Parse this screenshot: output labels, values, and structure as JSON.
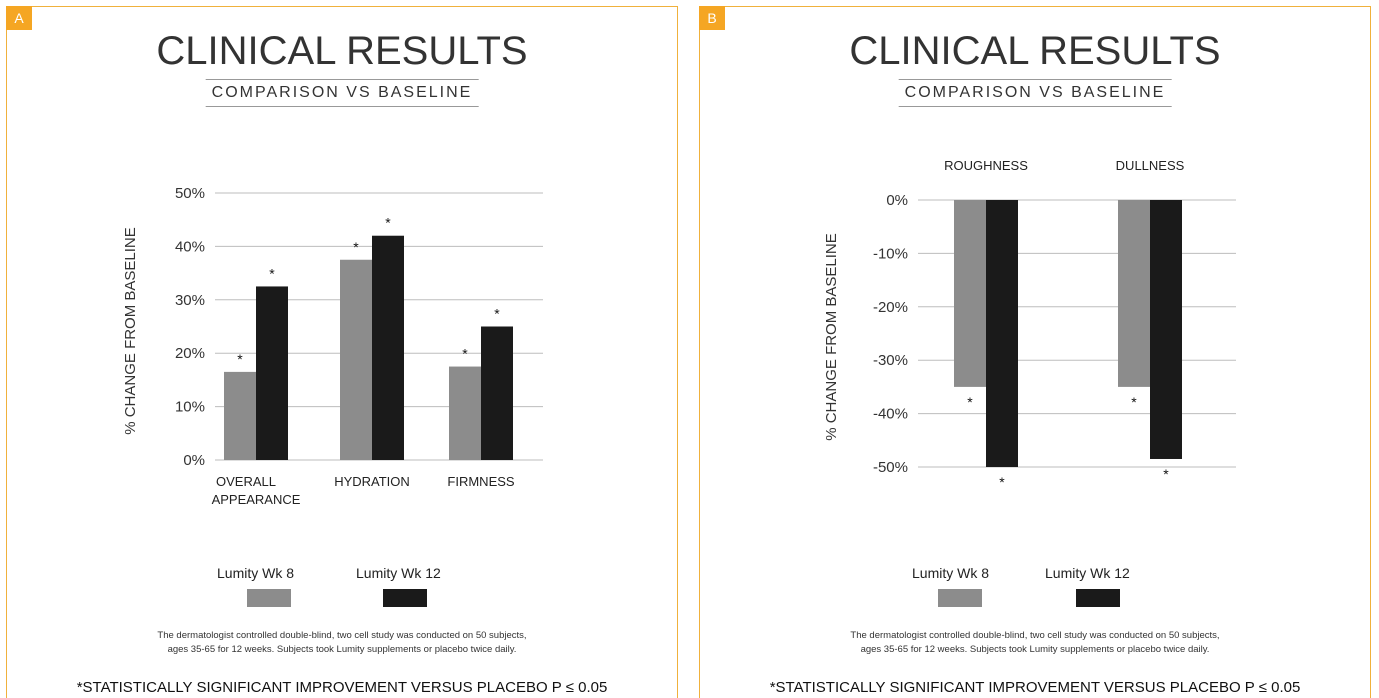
{
  "panels": [
    {
      "tag": "A",
      "title": "CLINICAL RESULTS",
      "subtitle": "COMPARISON VS BASELINE",
      "legend": [
        {
          "label": "Lumity Wk 8",
          "color": "#8c8c8c"
        },
        {
          "label": "Lumity Wk 12",
          "color": "#1a1a1a"
        }
      ],
      "footnote_line1": "The dermatologist controlled double-blind, two cell study was conducted on 50 subjects,",
      "footnote_line2": "ages 35-65 for 12 weeks. Subjects took Lumity supplements or placebo twice daily.",
      "significance": "*STATISTICALLY SIGNIFICANT IMPROVEMENT VERSUS PLACEBO P ≤ 0.05"
    },
    {
      "tag": "B",
      "title": "CLINICAL RESULTS",
      "subtitle": "COMPARISON VS BASELINE",
      "legend": [
        {
          "label": "Lumity Wk 8",
          "color": "#8c8c8c"
        },
        {
          "label": "Lumity Wk 12",
          "color": "#1a1a1a"
        }
      ],
      "footnote_line1": "The dermatologist controlled double-blind, two cell study was conducted on 50 subjects,",
      "footnote_line2": "ages 35-65 for 12 weeks. Subjects took Lumity supplements or placebo twice daily.",
      "significance": "*STATISTICALLY SIGNIFICANT IMPROVEMENT VERSUS PLACEBO P ≤ 0.05"
    }
  ],
  "chart_data": [
    {
      "type": "bar",
      "title": "CLINICAL RESULTS",
      "subtitle": "COMPARISON VS BASELINE",
      "categories": [
        [
          "OVERALL",
          "APPEARANCE"
        ],
        [
          "HYDRATION"
        ],
        [
          "FIRMNESS"
        ]
      ],
      "series": [
        {
          "name": "Lumity Wk 8",
          "values": [
            16.5,
            37.5,
            17.5
          ],
          "color": "#8c8c8c"
        },
        {
          "name": "Lumity Wk 12",
          "values": [
            32.5,
            42,
            25
          ],
          "color": "#1a1a1a"
        }
      ],
      "significance_marker": "*",
      "ylabel": "% CHANGE FROM BASELINE",
      "ylim": [
        0,
        50
      ],
      "yticks": [
        0,
        10,
        20,
        30,
        40,
        50
      ],
      "ytick_labels": [
        "0%",
        "10%",
        "20%",
        "30%",
        "40%",
        "50%"
      ],
      "grid": true,
      "legend_position": "bottom"
    },
    {
      "type": "bar",
      "title": "CLINICAL RESULTS",
      "subtitle": "COMPARISON VS BASELINE",
      "categories": [
        [
          "ROUGHNESS"
        ],
        [
          "DULLNESS"
        ]
      ],
      "category_label_position": "top",
      "series": [
        {
          "name": "Lumity Wk 8",
          "values": [
            -35,
            -35
          ],
          "color": "#8c8c8c"
        },
        {
          "name": "Lumity Wk 12",
          "values": [
            -50,
            -48.5
          ],
          "color": "#1a1a1a"
        }
      ],
      "significance_marker": "*",
      "ylabel": "% CHANGE FROM BASELINE",
      "ylim": [
        -50,
        0
      ],
      "yticks": [
        0,
        -10,
        -20,
        -30,
        -40,
        -50
      ],
      "ytick_labels": [
        "0%",
        "-10%",
        "-20%",
        "-30%",
        "-40%",
        "-50%"
      ],
      "grid": true,
      "legend_position": "bottom"
    }
  ]
}
